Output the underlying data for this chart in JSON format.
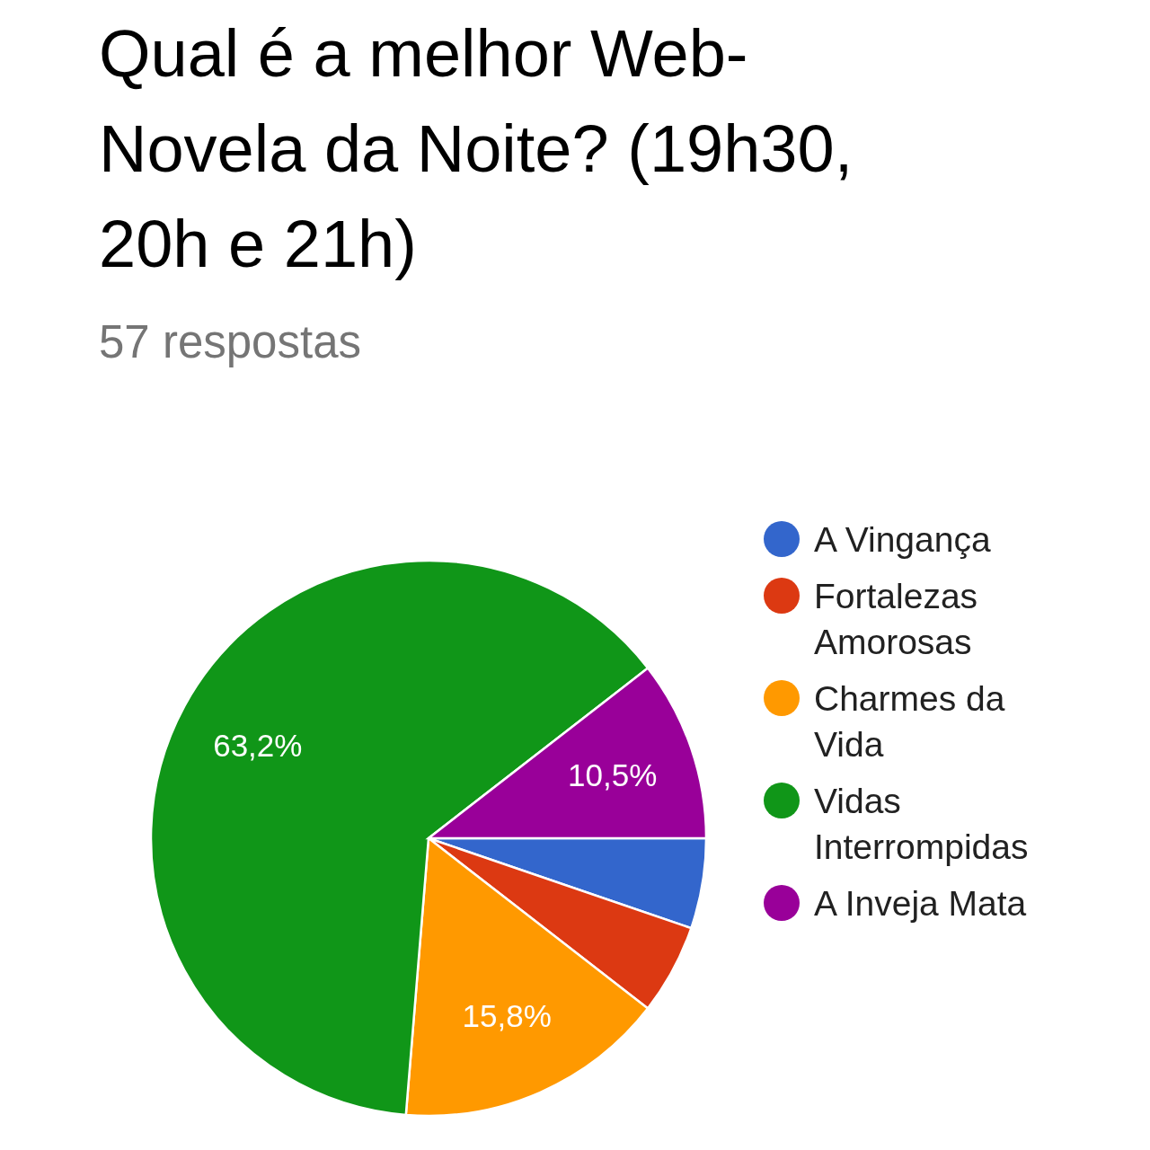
{
  "chart_data": {
    "type": "pie",
    "title": "Qual é a melhor Web-Novela da Noite? (19h30, 20h e 21h)",
    "subtitle": "57 respostas",
    "categories": [
      "A Vingança",
      "Fortalezas Amorosas",
      "Charmes da Vida",
      "Vidas Interrompidas",
      "A Inveja Mata"
    ],
    "values": [
      5.25,
      5.25,
      15.8,
      63.2,
      10.5
    ],
    "colors": [
      "#3366cc",
      "#dc3912",
      "#ff9900",
      "#109618",
      "#990099"
    ],
    "value_labels": [
      null,
      null,
      "15,8%",
      "63,2%",
      "10,5%"
    ],
    "legend": "right"
  }
}
